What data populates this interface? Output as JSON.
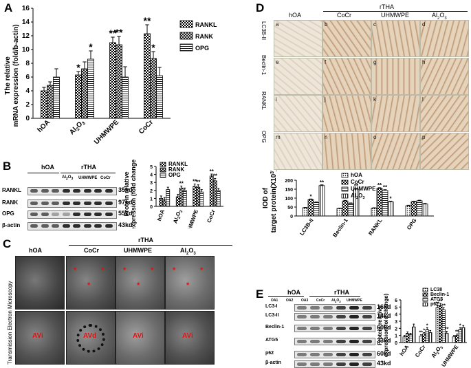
{
  "panelA": {
    "label": "A",
    "ylabel_1": "The relative",
    "ylabel_2": "mRNA expression (fold/b-actin)",
    "legend": [
      "RANKL",
      "RANK",
      "OPG"
    ],
    "chart_data": {
      "type": "bar",
      "categories": [
        "hOA",
        "Al2O3",
        "UHMWPE",
        "CoCr"
      ],
      "series": [
        {
          "name": "RANKL",
          "values": [
            4.0,
            6.3,
            11.0,
            12.3
          ],
          "errors": [
            0.5,
            0.5,
            0.8,
            1.3
          ]
        },
        {
          "name": "RANK",
          "values": [
            4.8,
            7.2,
            10.7,
            8.7
          ],
          "errors": [
            0.5,
            1.0,
            1.2,
            1.0
          ]
        },
        {
          "name": "OPG",
          "values": [
            6.0,
            8.6,
            6.0,
            6.2
          ],
          "errors": [
            1.2,
            1.2,
            1.5,
            1.2
          ]
        }
      ],
      "significance": [
        [
          "",
          "",
          ""
        ],
        [
          "*",
          "",
          "*"
        ],
        [
          "**",
          "**",
          ""
        ],
        [
          "**",
          "*",
          ""
        ]
      ],
      "yticks": [
        "0",
        "2",
        "4",
        "6",
        "8",
        "10",
        "12",
        "14",
        "16"
      ],
      "ylim": [
        0,
        16
      ]
    }
  },
  "panelB": {
    "label": "B",
    "group_hoa": "hOA",
    "group_rtha": "rTHA",
    "sub_labels": [
      "Al2O3",
      "UHMWPE",
      "CoCr"
    ],
    "rows": [
      {
        "name": "RANKL",
        "kd": "35kd"
      },
      {
        "name": "RANK",
        "kd": "97kd"
      },
      {
        "name": "OPG",
        "kd": "55kd"
      },
      {
        "name": "β-actin",
        "kd": "43kd"
      }
    ],
    "ylabel_1": "Protein relative",
    "ylabel_2": "expression (fold change)",
    "legend": [
      "RANKL",
      "RANK",
      "OPG"
    ],
    "chart_data": {
      "type": "bar",
      "categories": [
        "hOA",
        "Al2O3",
        "UHMWPE",
        "CoCr"
      ],
      "series": [
        {
          "name": "RANKL",
          "values": [
            1.0,
            1.2,
            2.5,
            3.8
          ],
          "errors": [
            0.3,
            0.3,
            0.3,
            0.25
          ]
        },
        {
          "name": "RANK",
          "values": [
            0.8,
            2.3,
            2.4,
            3.2
          ],
          "errors": [
            0.3,
            0.25,
            0.3,
            0.3
          ]
        },
        {
          "name": "OPG",
          "values": [
            2.1,
            2.0,
            1.8,
            2.0
          ],
          "errors": [
            0.3,
            0.3,
            0.3,
            0.25
          ]
        }
      ],
      "significance": [
        [
          "",
          "",
          ""
        ],
        [
          "",
          "**",
          ""
        ],
        [
          "**",
          "**",
          ""
        ],
        [
          "**",
          "**",
          ""
        ]
      ],
      "yticks": [
        "0",
        "1",
        "2",
        "3",
        "4",
        "5"
      ],
      "ylim": [
        0,
        5
      ]
    }
  },
  "panelC": {
    "label": "C",
    "side_label": "Transmission Electron Microscopy",
    "group_rtha": "rTHA",
    "columns": [
      "hOA",
      "CoCr",
      "UHMWPE",
      "Al2O3"
    ],
    "annotations": {
      "avi": "AVi",
      "avd": "AVd",
      "star": "*"
    }
  },
  "panelD": {
    "label": "D",
    "group_rtha": "rTHA",
    "columns": [
      "hOA",
      "CoCr",
      "UHMWPE",
      "Al2O3"
    ],
    "rows": [
      "LC3B-II",
      "Beclin-1",
      "RANKL",
      "OPG"
    ],
    "letters": [
      "a",
      "b",
      "c",
      "d",
      "e",
      "f",
      "g",
      "h",
      "i",
      "j",
      "k",
      "l",
      "m",
      "n",
      "o",
      "p"
    ],
    "ylabel_1": "IOD of",
    "ylabel_2": "target protein(X10",
    "ylabel_sup": "3",
    "ylabel_3": ")",
    "legend": [
      "hOA",
      "CoCr",
      "UHMWPE",
      "Al2O3"
    ],
    "chart_data": {
      "type": "bar",
      "categories": [
        "LC3B-II",
        "Beclin-1",
        "RANKL",
        "OPG"
      ],
      "series": [
        {
          "name": "hOA",
          "values": [
            46,
            42,
            44,
            57
          ],
          "errors": [
            2,
            2,
            2,
            3
          ]
        },
        {
          "name": "CoCr",
          "values": [
            92,
            84,
            154,
            80
          ],
          "errors": [
            3,
            3,
            4,
            3
          ]
        },
        {
          "name": "UHMWPE",
          "values": [
            75,
            70,
            143,
            85
          ],
          "errors": [
            3,
            3,
            4,
            3
          ]
        },
        {
          "name": "Al2O3",
          "values": [
            170,
            150,
            80,
            67
          ],
          "errors": [
            4,
            4,
            3,
            3
          ]
        }
      ],
      "significance": [
        [
          "",
          "*",
          "",
          "**"
        ],
        [
          "",
          "*",
          "",
          "**"
        ],
        [
          "",
          "**",
          "**",
          "*"
        ],
        [
          "",
          "",
          "",
          ""
        ]
      ],
      "yticks": [
        "0",
        "50",
        "100",
        "150",
        "200"
      ],
      "ylim": [
        0,
        200
      ]
    }
  },
  "panelE": {
    "label": "E",
    "group_hoa": "hOA",
    "group_rtha": "rTHA",
    "hoa_lanes": [
      "OA1",
      "OA2",
      "OA3"
    ],
    "rtha_lanes": [
      "CoCr",
      "Al2O3",
      "UHMWPE"
    ],
    "rows": [
      {
        "name": "LC3-I",
        "kd": "16kd"
      },
      {
        "name": "LC3-II",
        "kd": "14kd"
      },
      {
        "name": "Beclin-1",
        "kd": "60kd"
      },
      {
        "name": "ATG5",
        "kd": "33kd"
      },
      {
        "name": "p62",
        "kd": "60kd"
      },
      {
        "name": "β-actin",
        "kd": "43kd"
      }
    ],
    "ylabel_1": "Protein relative",
    "ylabel_2": "expression(fold change)",
    "legend": [
      "LC3II",
      "Beclin-1",
      "ATG5",
      "p62"
    ],
    "chart_data": {
      "type": "bar",
      "categories": [
        "hOA",
        "CoCr",
        "Al2O3",
        "UHMWPE"
      ],
      "series": [
        {
          "name": "LC3II",
          "values": [
            0.8,
            0.9,
            4.9,
            0.8
          ],
          "errors": [
            0.2,
            0.2,
            0.3,
            0.2
          ]
        },
        {
          "name": "Beclin-1",
          "values": [
            1.3,
            1.2,
            5.2,
            1.0
          ],
          "errors": [
            0.2,
            0.2,
            0.3,
            0.2
          ]
        },
        {
          "name": "ATG5",
          "values": [
            1.1,
            1.8,
            4.6,
            1.8
          ],
          "errors": [
            0.2,
            0.3,
            0.3,
            0.3
          ]
        },
        {
          "name": "p62",
          "values": [
            2.2,
            1.4,
            1.3,
            2.1
          ],
          "errors": [
            0.4,
            0.3,
            0.3,
            0.3
          ]
        }
      ],
      "significance": [
        [
          "",
          "",
          "",
          ""
        ],
        [
          "**",
          "*",
          "*",
          ""
        ],
        [
          "**",
          "**",
          "**",
          "**"
        ],
        [
          "",
          "**",
          "*",
          ""
        ]
      ],
      "yticks": [
        "0",
        "1",
        "2",
        "3",
        "4",
        "5",
        "6"
      ],
      "ylim": [
        0,
        6
      ]
    }
  }
}
